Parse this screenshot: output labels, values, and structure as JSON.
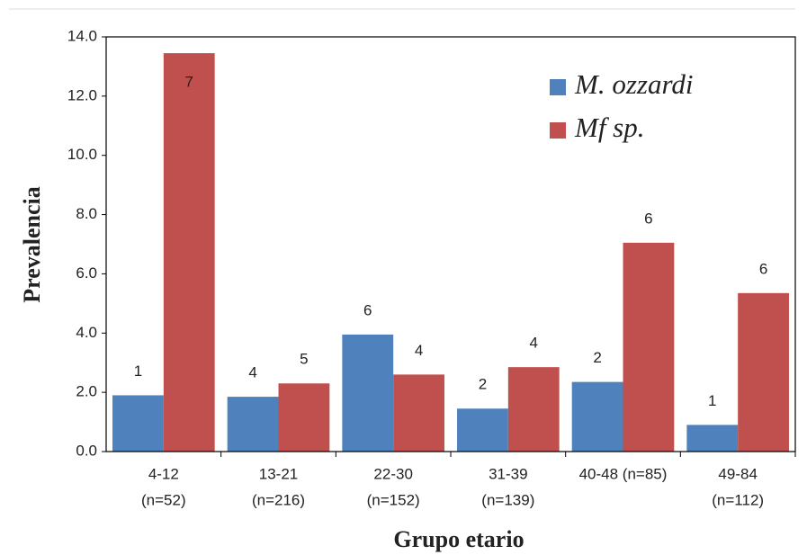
{
  "chart_data": {
    "type": "bar",
    "categories": [
      [
        "4-12",
        "(n=52)"
      ],
      [
        "13-21",
        "(n=216)"
      ],
      [
        "22-30",
        "(n=152)"
      ],
      [
        "31-39",
        "(n=139)"
      ],
      [
        "40-48 (n=85)"
      ],
      [
        "49-84",
        "(n=112)"
      ]
    ],
    "series": [
      {
        "name": "M. ozzardi",
        "color": "#4f81bd",
        "values": [
          1.9,
          1.85,
          3.95,
          1.45,
          2.35,
          0.9
        ],
        "counts": [
          1,
          4,
          6,
          2,
          2,
          1
        ]
      },
      {
        "name": "Mf sp.",
        "color": "#c0504d",
        "values": [
          13.45,
          2.3,
          2.6,
          2.85,
          7.05,
          5.35
        ],
        "counts": [
          7,
          5,
          4,
          4,
          6,
          6
        ]
      }
    ],
    "ylim": [
      0,
      14
    ],
    "yticks": [
      {
        "value": 0,
        "label": "0.0"
      },
      {
        "value": 2,
        "label": "2.0"
      },
      {
        "value": 4,
        "label": "4.0"
      },
      {
        "value": 6,
        "label": "6.0"
      },
      {
        "value": 8,
        "label": "8.0"
      },
      {
        "value": 10,
        "label": "10.0"
      },
      {
        "value": 12,
        "label": "12.0"
      },
      {
        "value": 14,
        "label": "14.0"
      }
    ],
    "y_label": "Prevalencia",
    "x_label": "Grupo etario",
    "legend": "upper right",
    "grid": false
  }
}
